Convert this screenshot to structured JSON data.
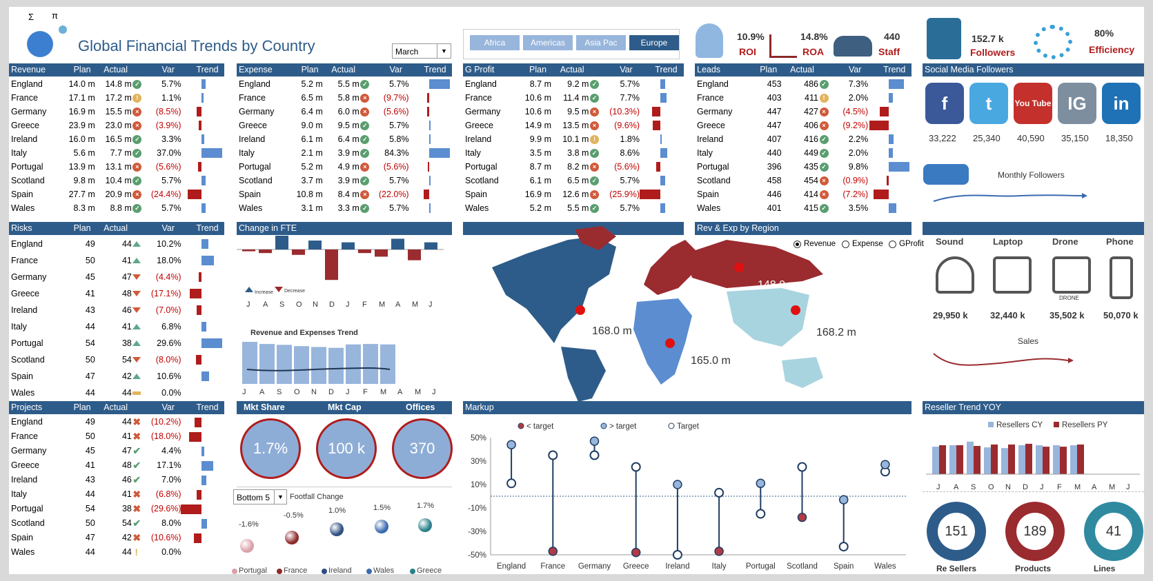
{
  "header": {
    "title": "Global Financial Trends by Country",
    "month": "March"
  },
  "regions": [
    "Africa",
    "Americas",
    "Asia Pac",
    "Europe"
  ],
  "kpis": [
    {
      "value": "10.9%",
      "label": "ROI"
    },
    {
      "value": "14.8%",
      "label": "ROA"
    },
    {
      "value": "440",
      "label": "Staff"
    },
    {
      "value": "152.7 k",
      "label": "Followers"
    },
    {
      "value": "80%",
      "label": "Efficiency"
    }
  ],
  "cols": {
    "plan": "Plan",
    "actual": "Actual",
    "var": "Var",
    "trend": "Trend"
  },
  "revenue": {
    "title": "Revenue",
    "rows": [
      [
        "England",
        "14.0 m",
        "14.8 m",
        "ok",
        "5.7%",
        6
      ],
      [
        "France",
        "17.1 m",
        "17.2 m",
        "mid",
        "1.1%",
        3
      ],
      [
        "Germany",
        "16.9 m",
        "15.5 m",
        "bad",
        "(8.5%)",
        -7
      ],
      [
        "Greece",
        "23.9 m",
        "23.0 m",
        "bad",
        "(3.9%)",
        -4
      ],
      [
        "Ireland",
        "16.0 m",
        "16.5 m",
        "ok",
        "3.3%",
        4
      ],
      [
        "Italy",
        "5.6 m",
        "7.7 m",
        "ok",
        "37.0%",
        30
      ],
      [
        "Portugal",
        "13.9 m",
        "13.1 m",
        "bad",
        "(5.6%)",
        -5
      ],
      [
        "Scotland",
        "9.8 m",
        "10.4 m",
        "ok",
        "5.7%",
        6
      ],
      [
        "Spain",
        "27.7 m",
        "20.9 m",
        "bad",
        "(24.4%)",
        -20
      ],
      [
        "Wales",
        "8.3 m",
        "8.8 m",
        "ok",
        "5.7%",
        6
      ]
    ]
  },
  "expense": {
    "title": "Expense",
    "rows": [
      [
        "England",
        "5.2 m",
        "5.5 m",
        "ok",
        "5.7%",
        30
      ],
      [
        "France",
        "6.5 m",
        "5.8 m",
        "bad",
        "(9.7%)",
        -3
      ],
      [
        "Germany",
        "6.4 m",
        "6.0 m",
        "bad",
        "(5.6%)",
        -3
      ],
      [
        "Greece",
        "9.0 m",
        "9.5 m",
        "ok",
        "5.7%",
        2
      ],
      [
        "Ireland",
        "6.1 m",
        "6.4 m",
        "ok",
        "5.8%",
        2
      ],
      [
        "Italy",
        "2.1 m",
        "3.9 m",
        "ok",
        "84.3%",
        30
      ],
      [
        "Portugal",
        "5.2 m",
        "4.9 m",
        "bad",
        "(5.6%)",
        -2
      ],
      [
        "Scotland",
        "3.7 m",
        "3.9 m",
        "ok",
        "5.7%",
        2
      ],
      [
        "Spain",
        "10.8 m",
        "8.4 m",
        "bad",
        "(22.0%)",
        -8
      ],
      [
        "Wales",
        "3.1 m",
        "3.3 m",
        "ok",
        "5.7%",
        2
      ]
    ]
  },
  "gprofit": {
    "title": "G Profit",
    "rows": [
      [
        "England",
        "8.7 m",
        "9.2 m",
        "ok",
        "5.7%",
        7
      ],
      [
        "France",
        "10.6 m",
        "11.4 m",
        "ok",
        "7.7%",
        9
      ],
      [
        "Germany",
        "10.6 m",
        "9.5 m",
        "bad",
        "(10.3%)",
        -12
      ],
      [
        "Greece",
        "14.9 m",
        "13.5 m",
        "bad",
        "(9.6%)",
        -11
      ],
      [
        "Ireland",
        "9.9 m",
        "10.1 m",
        "mid",
        "1.8%",
        2
      ],
      [
        "Italy",
        "3.5 m",
        "3.8 m",
        "ok",
        "8.6%",
        10
      ],
      [
        "Portugal",
        "8.7 m",
        "8.2 m",
        "bad",
        "(5.6%)",
        -6
      ],
      [
        "Scotland",
        "6.1 m",
        "6.5 m",
        "ok",
        "5.7%",
        7
      ],
      [
        "Spain",
        "16.9 m",
        "12.6 m",
        "bad",
        "(25.9%)",
        -30
      ],
      [
        "Wales",
        "5.2 m",
        "5.5 m",
        "ok",
        "5.7%",
        7
      ]
    ]
  },
  "leads": {
    "title": "Leads",
    "rows": [
      [
        "England",
        "453",
        "486",
        "ok",
        "7.3%",
        22
      ],
      [
        "France",
        "403",
        "411",
        "mid",
        "2.0%",
        6
      ],
      [
        "Germany",
        "447",
        "427",
        "bad",
        "(4.5%)",
        -13
      ],
      [
        "Greece",
        "447",
        "406",
        "bad",
        "(9.2%)",
        -28
      ],
      [
        "Ireland",
        "407",
        "416",
        "ok",
        "2.2%",
        7
      ],
      [
        "Italy",
        "440",
        "449",
        "ok",
        "2.0%",
        6
      ],
      [
        "Portugal",
        "396",
        "435",
        "ok",
        "9.8%",
        30
      ],
      [
        "Scotland",
        "458",
        "454",
        "bad",
        "(0.9%)",
        -3
      ],
      [
        "Spain",
        "446",
        "414",
        "bad",
        "(7.2%)",
        -22
      ],
      [
        "Wales",
        "401",
        "415",
        "ok",
        "3.5%",
        11
      ]
    ]
  },
  "risks": {
    "title": "Risks",
    "rows": [
      [
        "England",
        "49",
        "44",
        "up",
        "10.2%",
        10
      ],
      [
        "France",
        "50",
        "41",
        "up",
        "18.0%",
        18
      ],
      [
        "Germany",
        "45",
        "47",
        "dn",
        "(4.4%)",
        -4
      ],
      [
        "Greece",
        "41",
        "48",
        "dn",
        "(17.1%)",
        -17
      ],
      [
        "Ireland",
        "43",
        "46",
        "dn",
        "(7.0%)",
        -7
      ],
      [
        "Italy",
        "44",
        "41",
        "up",
        "6.8%",
        7
      ],
      [
        "Portugal",
        "54",
        "38",
        "up",
        "29.6%",
        30
      ],
      [
        "Scotland",
        "50",
        "54",
        "dn",
        "(8.0%)",
        -8
      ],
      [
        "Spain",
        "47",
        "42",
        "up",
        "10.6%",
        11
      ],
      [
        "Wales",
        "44",
        "44",
        "eq",
        "0.0%",
        0
      ]
    ]
  },
  "projects": {
    "title": "Projects",
    "rows": [
      [
        "England",
        "49",
        "44",
        "x",
        "(10.2%)",
        -10
      ],
      [
        "France",
        "50",
        "41",
        "x",
        "(18.0%)",
        -18
      ],
      [
        "Germany",
        "45",
        "47",
        "c",
        "4.4%",
        4
      ],
      [
        "Greece",
        "41",
        "48",
        "c",
        "17.1%",
        17
      ],
      [
        "Ireland",
        "43",
        "46",
        "c",
        "7.0%",
        7
      ],
      [
        "Italy",
        "44",
        "41",
        "x",
        "(6.8%)",
        -7
      ],
      [
        "Portugal",
        "54",
        "38",
        "x",
        "(29.6%)",
        -30
      ],
      [
        "Scotland",
        "50",
        "54",
        "c",
        "8.0%",
        8
      ],
      [
        "Spain",
        "47",
        "42",
        "x",
        "(10.6%)",
        -11
      ],
      [
        "Wales",
        "44",
        "44",
        "e",
        "0.0%",
        0
      ]
    ]
  },
  "fte": {
    "title": "Change in FTE",
    "months": [
      "J",
      "A",
      "S",
      "O",
      "N",
      "D",
      "J",
      "F",
      "M",
      "A",
      "M",
      "J"
    ],
    "values": [
      -1,
      -2,
      10,
      -3,
      5,
      -17,
      4,
      -2,
      -4,
      6,
      -6,
      4
    ],
    "legend_up": "Increase",
    "legend_down": "Decrease",
    "trend_title": "Revenue and Expenses Trend",
    "trend_bars": [
      100,
      95,
      93,
      90,
      88,
      86,
      94,
      95,
      94,
      0,
      0,
      0
    ]
  },
  "map": {
    "title": "Rev & Exp by Region",
    "options": [
      "Revenue",
      "Expense",
      "GProfit"
    ],
    "labels": [
      "168.0 m",
      "148.0 m",
      "168.2 m",
      "165.0 m"
    ]
  },
  "social": {
    "title": "Social Media Followers",
    "icons": [
      "f",
      "t",
      "You Tube",
      "IG",
      "in"
    ],
    "values": [
      "33,222",
      "25,340",
      "40,590",
      "35,150",
      "18,350"
    ],
    "monthly": "Monthly Followers"
  },
  "products": {
    "names": [
      "Sound",
      "Laptop",
      "Drone",
      "Phone"
    ],
    "values": [
      "29,950 k",
      "32,440 k",
      "35,502 k",
      "50,070 k"
    ],
    "drone_text": "DRONE",
    "sales": "Sales"
  },
  "mkt": {
    "labels": [
      "Mkt Share",
      "Mkt Cap",
      "Offices"
    ],
    "values": [
      "1.7%",
      "100 k",
      "370"
    ],
    "select": "Bottom 5",
    "footfall": "Footfall Change",
    "bubbles": [
      {
        "name": "Portugal",
        "v": "-1.6%",
        "c": "#d9a0a8"
      },
      {
        "name": "France",
        "v": "-0.5%",
        "c": "#8e2a2a"
      },
      {
        "name": "Ireland",
        "v": "1.0%",
        "c": "#2e4f80"
      },
      {
        "name": "Wales",
        "v": "1.5%",
        "c": "#3a6ab0"
      },
      {
        "name": "Greece",
        "v": "1.7%",
        "c": "#2a7f8a"
      }
    ]
  },
  "markup": {
    "title": "Markup",
    "legend": [
      "< target",
      "> target",
      "Target"
    ],
    "yticks": [
      "50%",
      "30%",
      "10%",
      "-10%",
      "-30%",
      "-50%"
    ],
    "chart_data": {
      "type": "scatter",
      "categories": [
        "England",
        "France",
        "Germany",
        "Greece",
        "Ireland",
        "Italy",
        "Portugal",
        "Scotland",
        "Spain",
        "Wales"
      ],
      "series": [
        {
          "name": "Target",
          "values": [
            11,
            35,
            35,
            25,
            -50,
            3,
            -15,
            25,
            -43,
            21
          ]
        },
        {
          "name": "Actual",
          "values": [
            44,
            -47,
            47,
            -48,
            10,
            -47,
            11,
            -18,
            -3,
            27
          ]
        }
      ],
      "ylim": [
        -50,
        50
      ]
    }
  },
  "reseller": {
    "title": "Reseller Trend YOY",
    "legend": [
      "Resellers CY",
      "Resellers PY"
    ],
    "months": [
      "J",
      "A",
      "S",
      "O",
      "N",
      "D",
      "J",
      "F",
      "M",
      "A",
      "M",
      "J"
    ],
    "cy": [
      38,
      40,
      45,
      37,
      36,
      40,
      40,
      40,
      40,
      0,
      0,
      0
    ],
    "py": [
      40,
      40,
      39,
      41,
      41,
      42,
      38,
      38,
      41,
      0,
      0,
      0
    ]
  },
  "donuts": [
    {
      "value": "151",
      "label": "Re Sellers",
      "color": "#2e5c8a"
    },
    {
      "value": "189",
      "label": "Products",
      "color": "#9a2b2f"
    },
    {
      "value": "41",
      "label": "Lines",
      "color": "#2f8aa0"
    }
  ],
  "colors": {
    "header": "#2e5c8a",
    "pos": "#5b8dd0",
    "neg": "#b01c1c"
  }
}
